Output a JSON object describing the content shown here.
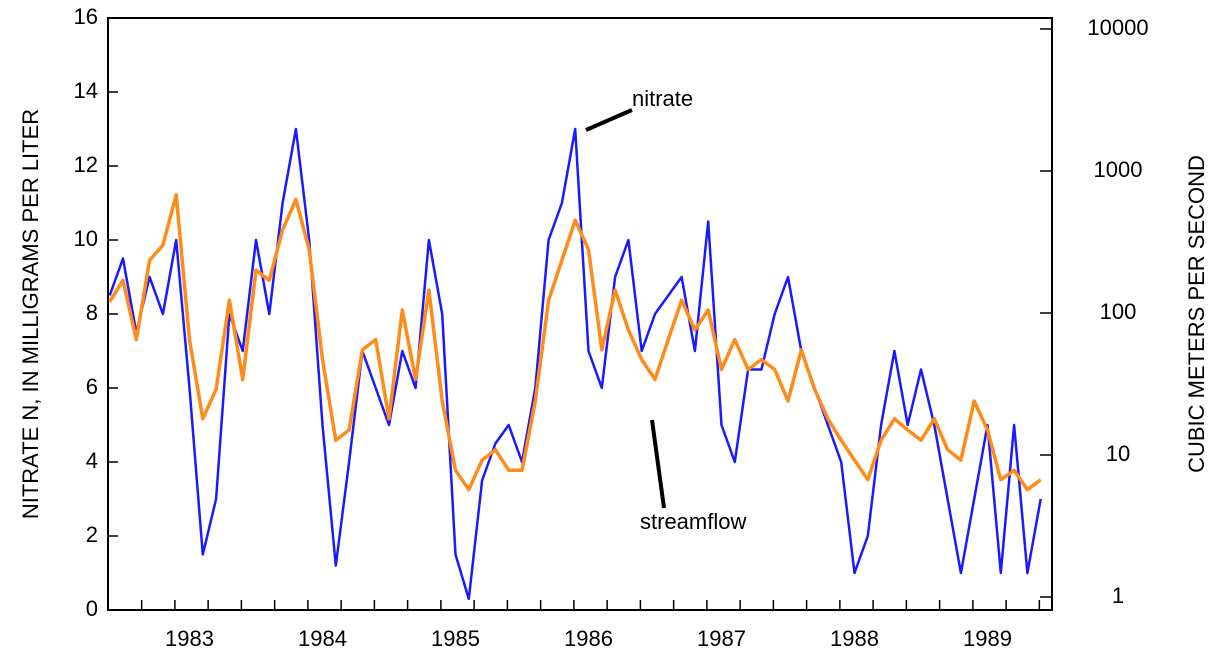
{
  "chart_data": {
    "type": "line",
    "ylabel": "NITRATE N, IN MILLIGRAMS PER LITER",
    "y2label": "CUBIC METERS PER SECOND",
    "x": [
      1982.9,
      1983.0,
      1983.1,
      1983.2,
      1983.3,
      1983.4,
      1983.5,
      1983.6,
      1983.7,
      1983.8,
      1983.9,
      1984.0,
      1984.1,
      1984.2,
      1984.3,
      1984.4,
      1984.5,
      1984.6,
      1984.7,
      1984.8,
      1984.9,
      1985.0,
      1985.1,
      1985.2,
      1985.3,
      1985.4,
      1985.5,
      1985.6,
      1985.7,
      1985.8,
      1985.9,
      1986.0,
      1986.1,
      1986.2,
      1986.3,
      1986.4,
      1986.5,
      1986.6,
      1986.7,
      1986.8,
      1986.9,
      1987.0,
      1987.1,
      1987.2,
      1987.3,
      1987.4,
      1987.5,
      1987.6,
      1987.7,
      1987.8,
      1987.9,
      1988.0,
      1988.1,
      1988.2,
      1988.3,
      1988.4,
      1988.5,
      1988.6,
      1988.7,
      1988.8,
      1988.9,
      1989.0,
      1989.1,
      1989.2,
      1989.3,
      1989.4,
      1989.5,
      1989.6,
      1989.7,
      1989.8,
      1989.9
    ],
    "series": [
      {
        "name": "nitrate",
        "color": "#1a1aff",
        "values": [
          8.5,
          9.5,
          7.5,
          9,
          8,
          10,
          6,
          1.5,
          3,
          8,
          7,
          10,
          8,
          11,
          13,
          10,
          5,
          1.2,
          4,
          7,
          6,
          5,
          7,
          6,
          10,
          8,
          1.5,
          0.3,
          3.5,
          4.5,
          5,
          4,
          6,
          10,
          11,
          13,
          7,
          6,
          9,
          10,
          7,
          8,
          8.5,
          9,
          7,
          10.5,
          5,
          4,
          6.5,
          6.5,
          8,
          9,
          7,
          6,
          5,
          4,
          1,
          2,
          5,
          7,
          5,
          6.5,
          5,
          3,
          1,
          3,
          5,
          1,
          5,
          1,
          3
        ]
      },
      {
        "name": "streamflow",
        "color": "#ff8c1a",
        "axis": "y2",
        "values": [
          120,
          170,
          65,
          235,
          300,
          680,
          65,
          18,
          29,
          123,
          34,
          200,
          170,
          385,
          630,
          280,
          47,
          12.7,
          15,
          55,
          65,
          18,
          105,
          34,
          145,
          24,
          7.8,
          5.7,
          9.2,
          10.9,
          7.8,
          7.8,
          24,
          123,
          235,
          450,
          280,
          55,
          145,
          76,
          47,
          34,
          65,
          123,
          76,
          105,
          40,
          65,
          40,
          47,
          40,
          24,
          55,
          29,
          18,
          12.7,
          9.2,
          6.7,
          12.7,
          18,
          15,
          12.7,
          18,
          10.9,
          9.2,
          24,
          15,
          6.7,
          7.8,
          5.7,
          6.7
        ]
      }
    ],
    "xlim": [
      1982.887,
      1989.985
    ],
    "xticks": [
      {
        "value": 1983.5,
        "label": "1983"
      },
      {
        "value": 1984.5,
        "label": "1984"
      },
      {
        "value": 1985.5,
        "label": "1985"
      },
      {
        "value": 1986.5,
        "label": "1986"
      },
      {
        "value": 1987.5,
        "label": "1987"
      },
      {
        "value": 1988.5,
        "label": "1988"
      },
      {
        "value": 1989.5,
        "label": "1989"
      }
    ],
    "xminorticks": [
      1983.14,
      1983.39,
      1983.64,
      1983.89,
      1984.14,
      1984.39,
      1984.64,
      1984.89,
      1985.14,
      1985.39,
      1985.64,
      1985.89,
      1986.14,
      1986.39,
      1986.64,
      1986.89,
      1987.14,
      1987.39,
      1987.64,
      1987.89,
      1988.14,
      1988.39,
      1988.64,
      1988.89,
      1989.14,
      1989.39,
      1989.64,
      1989.89
    ],
    "ylim": [
      0,
      16
    ],
    "yticks": [
      0,
      2,
      4,
      6,
      8,
      10,
      12,
      14,
      16
    ],
    "y2lim": [
      0.81,
      11950
    ],
    "y2ticks": [
      1,
      10,
      100,
      1000,
      10000
    ],
    "y2scale": "log"
  }
}
